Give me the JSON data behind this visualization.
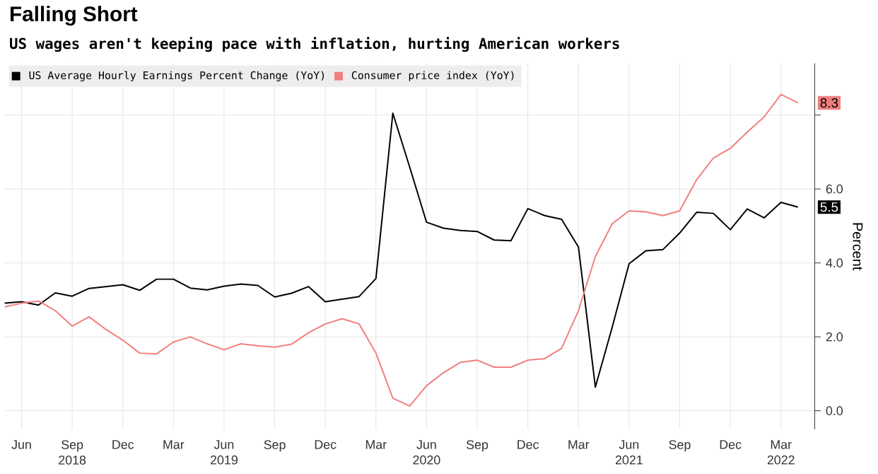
{
  "chart_data": {
    "type": "line",
    "title": "Falling Short",
    "subtitle": "US wages aren't keeping pace with inflation, hurting American workers",
    "ylabel": "Percent",
    "x": [
      "2018-05",
      "2018-06",
      "2018-07",
      "2018-08",
      "2018-09",
      "2018-10",
      "2018-11",
      "2018-12",
      "2019-01",
      "2019-02",
      "2019-03",
      "2019-04",
      "2019-05",
      "2019-06",
      "2019-07",
      "2019-08",
      "2019-09",
      "2019-10",
      "2019-11",
      "2019-12",
      "2020-01",
      "2020-02",
      "2020-03",
      "2020-04",
      "2020-05",
      "2020-06",
      "2020-07",
      "2020-08",
      "2020-09",
      "2020-10",
      "2020-11",
      "2020-12",
      "2021-01",
      "2021-02",
      "2021-03",
      "2021-04",
      "2021-05",
      "2021-06",
      "2021-07",
      "2021-08",
      "2021-09",
      "2021-10",
      "2021-11",
      "2021-12",
      "2022-01",
      "2022-02",
      "2022-03",
      "2022-04"
    ],
    "series": [
      {
        "name": "US Average Hourly Earnings Percent Change (YoY)",
        "color": "#000000",
        "values": [
          2.91,
          2.95,
          2.86,
          3.19,
          3.1,
          3.31,
          3.36,
          3.41,
          3.26,
          3.56,
          3.56,
          3.32,
          3.27,
          3.37,
          3.43,
          3.39,
          3.08,
          3.18,
          3.36,
          2.95,
          3.02,
          3.09,
          3.58,
          8.05,
          6.59,
          5.1,
          4.94,
          4.88,
          4.85,
          4.62,
          4.6,
          5.47,
          5.28,
          5.18,
          4.43,
          0.64,
          2.26,
          3.98,
          4.33,
          4.36,
          4.81,
          5.37,
          5.34,
          4.9,
          5.46,
          5.22,
          5.64,
          5.51
        ],
        "value_labels": [
          null,
          null,
          null,
          null,
          null,
          null,
          null,
          null,
          null,
          null,
          null,
          null,
          null,
          null,
          null,
          null,
          null,
          null,
          null,
          null,
          null,
          null,
          null,
          null,
          null,
          null,
          null,
          null,
          null,
          null,
          null,
          null,
          null,
          null,
          null,
          null,
          null,
          null,
          null,
          null,
          null,
          null,
          null,
          null,
          null,
          null,
          null,
          "5.5"
        ]
      },
      {
        "name": "Consumer price index (YoY)",
        "color": "#f07f7f",
        "values": [
          2.81,
          2.91,
          2.97,
          2.71,
          2.29,
          2.54,
          2.2,
          1.91,
          1.56,
          1.54,
          1.86,
          2.0,
          1.81,
          1.65,
          1.81,
          1.76,
          1.72,
          1.8,
          2.11,
          2.35,
          2.49,
          2.35,
          1.56,
          0.34,
          0.13,
          0.68,
          1.03,
          1.31,
          1.37,
          1.18,
          1.18,
          1.37,
          1.41,
          1.69,
          2.71,
          4.17,
          5.06,
          5.41,
          5.38,
          5.28,
          5.41,
          6.25,
          6.84,
          7.1,
          7.54,
          7.95,
          8.56,
          8.33
        ],
        "value_labels": [
          null,
          null,
          null,
          null,
          null,
          null,
          null,
          null,
          null,
          null,
          null,
          null,
          null,
          null,
          null,
          null,
          null,
          null,
          null,
          null,
          null,
          null,
          null,
          null,
          null,
          null,
          null,
          null,
          null,
          null,
          null,
          null,
          null,
          null,
          null,
          null,
          null,
          null,
          null,
          null,
          null,
          null,
          null,
          null,
          null,
          null,
          null,
          "8.3"
        ]
      }
    ],
    "xlim": [
      "2018-05",
      "2022-05"
    ],
    "xticks": [
      {
        "value": "2018-06",
        "label": "Jun"
      },
      {
        "value": "2018-09",
        "label": "Sep 2018"
      },
      {
        "value": "2018-12",
        "label": "Dec"
      },
      {
        "value": "2019-03",
        "label": "Mar"
      },
      {
        "value": "2019-06",
        "label": "Jun 2019"
      },
      {
        "value": "2019-09",
        "label": "Sep"
      },
      {
        "value": "2019-12",
        "label": "Dec"
      },
      {
        "value": "2020-03",
        "label": "Mar"
      },
      {
        "value": "2020-06",
        "label": "Jun 2020"
      },
      {
        "value": "2020-09",
        "label": "Sep"
      },
      {
        "value": "2020-12",
        "label": "Dec"
      },
      {
        "value": "2021-03",
        "label": "Mar"
      },
      {
        "value": "2021-06",
        "label": "Jun 2021"
      },
      {
        "value": "2021-09",
        "label": "Sep"
      },
      {
        "value": "2021-12",
        "label": "Dec"
      },
      {
        "value": "2022-03",
        "label": "Mar 2022"
      }
    ],
    "ylim": [
      -0.5,
      9.4
    ],
    "yticks": [
      {
        "value": 0,
        "label": "0.0"
      },
      {
        "value": 2,
        "label": "2.0"
      },
      {
        "value": 4,
        "label": "4.0"
      },
      {
        "value": 6,
        "label": "6.0"
      },
      {
        "value": 8,
        "label": null
      }
    ],
    "grid": true,
    "legend": "top left",
    "marker": "none",
    "line_style": "solid"
  }
}
